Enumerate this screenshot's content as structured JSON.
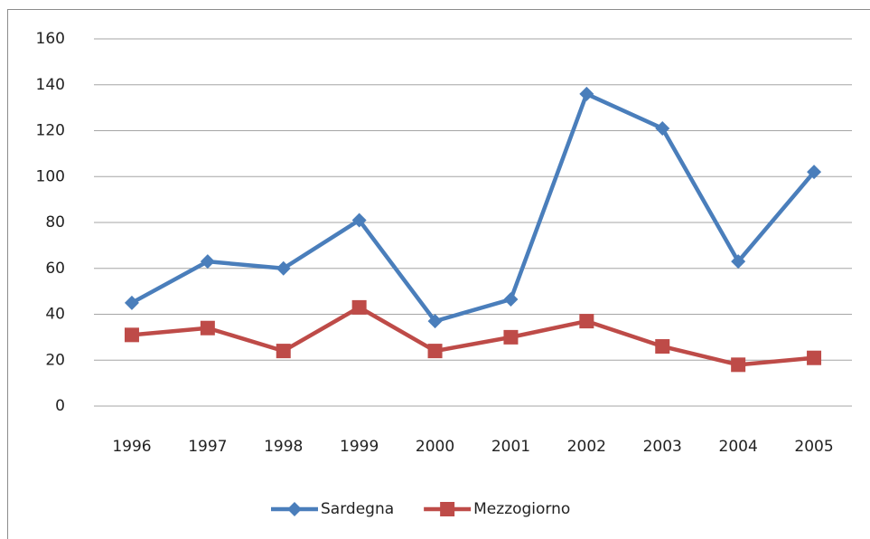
{
  "chart_data": {
    "type": "line",
    "categories": [
      "1996",
      "1997",
      "1998",
      "1999",
      "2000",
      "2001",
      "2002",
      "2003",
      "2004",
      "2005"
    ],
    "series": [
      {
        "name": "Sardegna",
        "color": "#4a7ebb",
        "marker": "diamond",
        "values": [
          45,
          63,
          60,
          81,
          37,
          46.5,
          136,
          121,
          63,
          102
        ]
      },
      {
        "name": "Mezzogiorno",
        "color": "#be4b48",
        "marker": "square",
        "values": [
          31,
          34,
          24,
          43,
          24,
          30,
          37,
          26,
          18,
          21
        ]
      }
    ],
    "ylim": [
      0,
      160
    ],
    "yticks": [
      0,
      20,
      40,
      60,
      80,
      100,
      120,
      140,
      160
    ],
    "grid": true,
    "legend": "bottom"
  }
}
